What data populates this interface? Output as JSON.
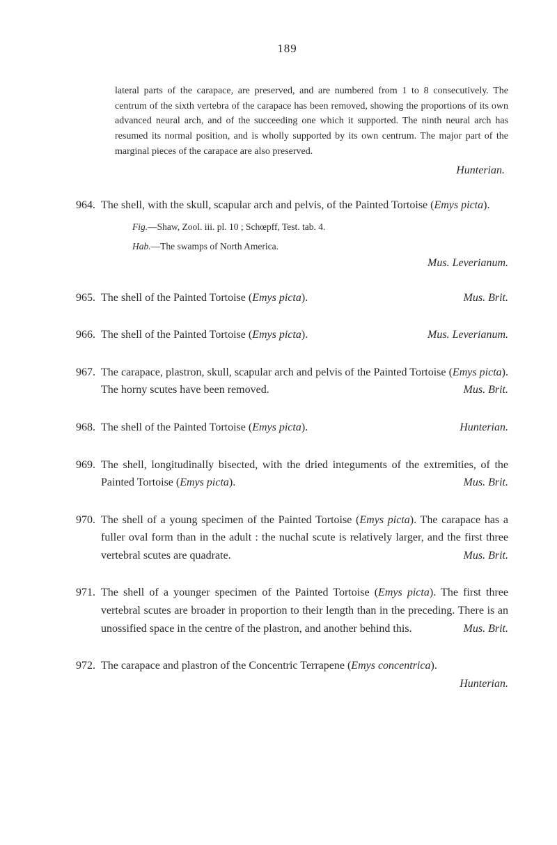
{
  "pageNumber": "189",
  "introPara": "lateral parts of the carapace, are preserved, and are numbered from 1 to 8 consecutively. The centrum of the sixth vertebra of the carapace has been removed, showing the proportions of its own advanced neural arch, and of the succeeding one which it supported. The ninth neural arch has resumed its normal position, and is wholly supported by its own centrum. The major part of the marginal pieces of the carapace are also preserved.",
  "introAttr": "Hunterian.",
  "entries": [
    {
      "num": "964.",
      "text": "The shell, with the skull, scapular arch and pelvis, of the Painted Tortoise (",
      "italic1": "Emys picta",
      "text2": ").",
      "sub1Label": "Fig.",
      "sub1Text": "—Shaw, Zool. iii. pl. 10 ; Schœpff, Test. tab. 4.",
      "sub2Label": "Hab.",
      "sub2Text": "—The swamps of North America.",
      "attr": "Mus. Leverianum."
    },
    {
      "num": "965.",
      "text": "The shell of the Painted Tortoise (",
      "italic1": "Emys picta",
      "text2": ").",
      "attr": "Mus. Brit."
    },
    {
      "num": "966.",
      "text": "The shell of the Painted Tortoise (",
      "italic1": "Emys picta",
      "text2": ").",
      "attr": "Mus. Leverianum."
    },
    {
      "num": "967.",
      "text": "The carapace, plastron, skull, scapular arch and pelvis of the Painted Tortoise (",
      "italic1": "Emys picta",
      "text2": "). The horny scutes have been removed.",
      "attr": "Mus. Brit."
    },
    {
      "num": "968.",
      "text": "The shell of the Painted Tortoise (",
      "italic1": "Emys picta",
      "text2": ").",
      "attr": "Hunterian."
    },
    {
      "num": "969.",
      "text": "The shell, longitudinally bisected, with the dried integuments of the extremities, of the Painted Tortoise (",
      "italic1": "Emys picta",
      "text2": ").",
      "attr": "Mus. Brit."
    },
    {
      "num": "970.",
      "text": "The shell of a young specimen of the Painted Tortoise (",
      "italic1": "Emys picta",
      "text2": "). The carapace has a fuller oval form than in the adult : the nuchal scute is relatively larger, and the first three vertebral scutes are quadrate.",
      "attr": "Mus. Brit."
    },
    {
      "num": "971.",
      "text": "The shell of a younger specimen of the Painted Tortoise (",
      "italic1": "Emys picta",
      "text2": "). The first three vertebral scutes are broader in proportion to their length than in the preceding. There is an unossified space in the centre of the plastron, and another behind this.",
      "attr": "Mus. Brit."
    },
    {
      "num": "972.",
      "text": "The carapace and plastron of the Concentric Terrapene (",
      "italic1": "Emys concentrica",
      "text2": ").",
      "attr": "Hunterian."
    }
  ]
}
